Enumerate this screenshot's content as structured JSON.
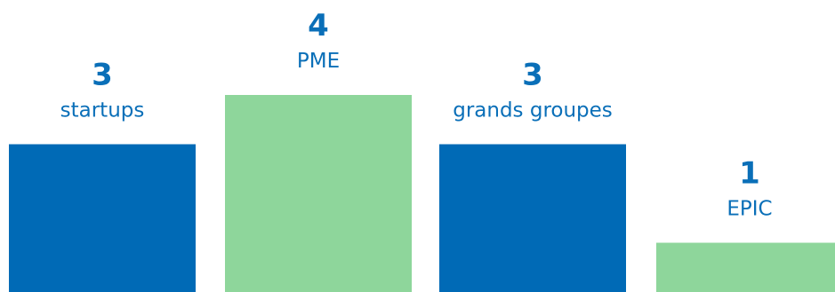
{
  "chart_data": {
    "type": "bar",
    "categories": [
      "startups",
      "PME",
      "grands groupes",
      "EPIC"
    ],
    "values": [
      3,
      4,
      3,
      1
    ],
    "title": "",
    "xlabel": "",
    "ylabel": "",
    "ylim": [
      0,
      4
    ],
    "grid": false,
    "legend": "none",
    "bar_colors": [
      "#006ab6",
      "#8ed69b",
      "#006ab6",
      "#8ed69b"
    ],
    "text_color": "#0a6fb8"
  }
}
